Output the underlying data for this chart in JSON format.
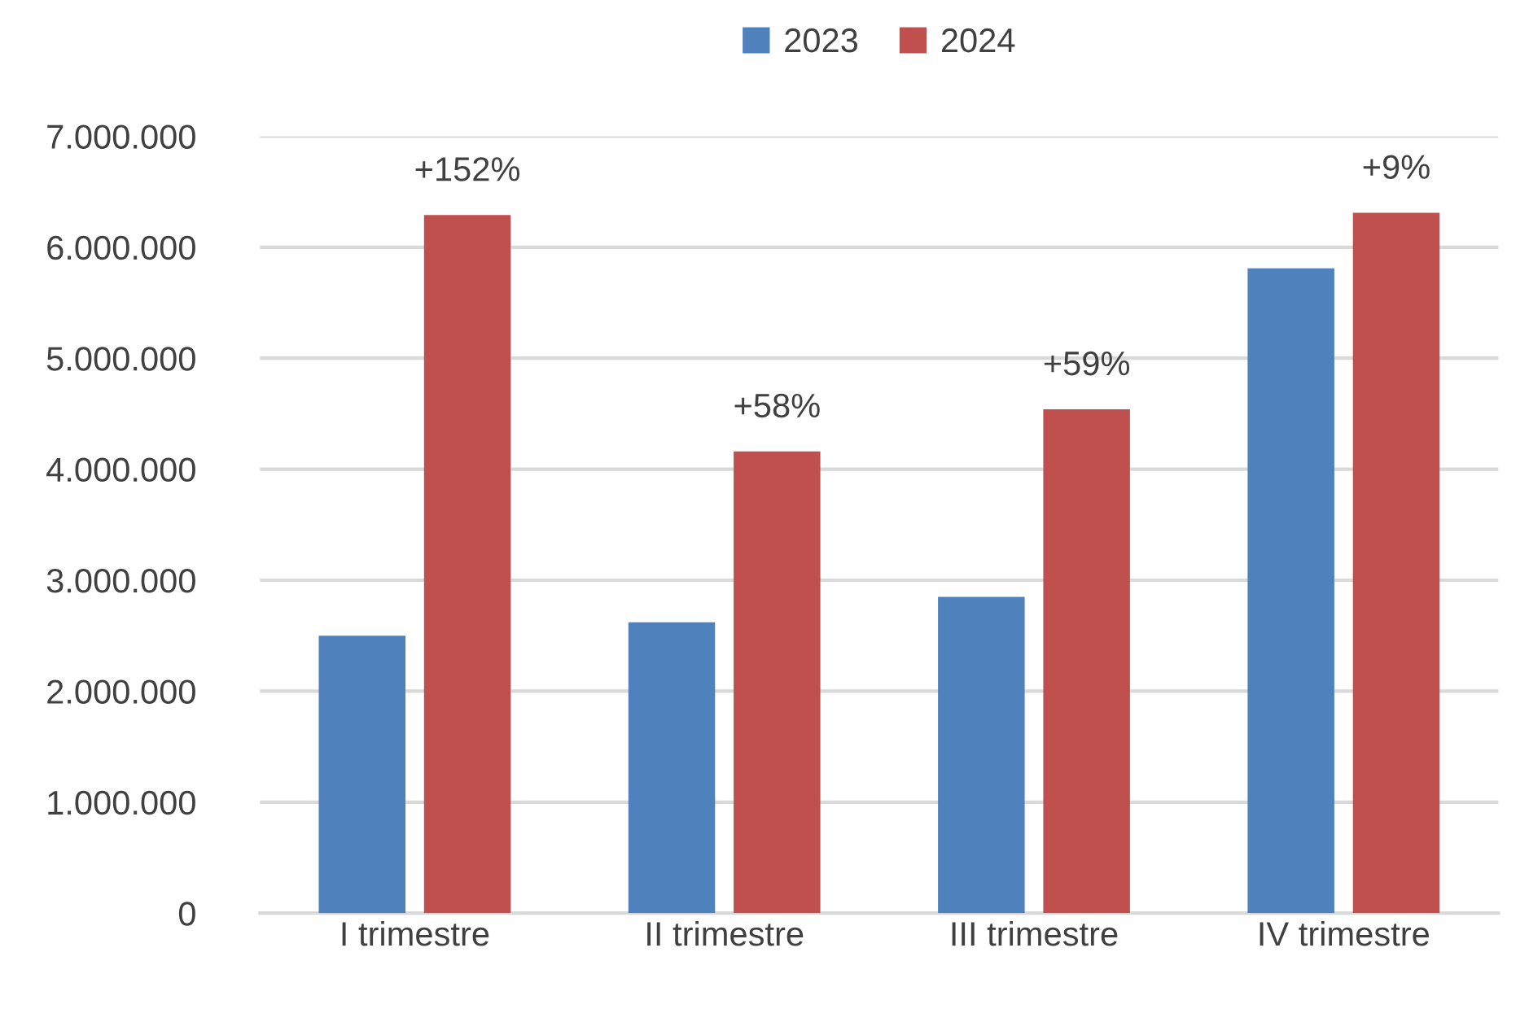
{
  "chart_data": {
    "type": "bar",
    "categories": [
      "I trimestre",
      "II trimestre",
      "III trimestre",
      "IV trimestre"
    ],
    "series": [
      {
        "name": "2023",
        "color": "#4f81bd",
        "values": [
          2500000,
          2620000,
          2850000,
          5810000
        ]
      },
      {
        "name": "2024",
        "color": "#c0504d",
        "values": [
          6290000,
          4160000,
          4540000,
          6310000
        ]
      }
    ],
    "ylim": [
      0,
      7000000
    ],
    "yticks": [
      0,
      {
        "value": 1000000,
        "label": "1.000.000"
      },
      {
        "value": 2000000,
        "label": "2.000.000"
      },
      {
        "value": 3000000,
        "label": "3.000.000"
      },
      {
        "value": 4000000,
        "label": "4.000.000"
      },
      {
        "value": 5000000,
        "label": "5.000.000"
      },
      {
        "value": 6000000,
        "label": "6.000.000"
      },
      {
        "value": 7000000,
        "label": "7.000.000"
      }
    ],
    "annotations": [
      "+152%",
      "+58%",
      "+59%",
      "+9%"
    ],
    "grid": "y",
    "legend": "top"
  }
}
